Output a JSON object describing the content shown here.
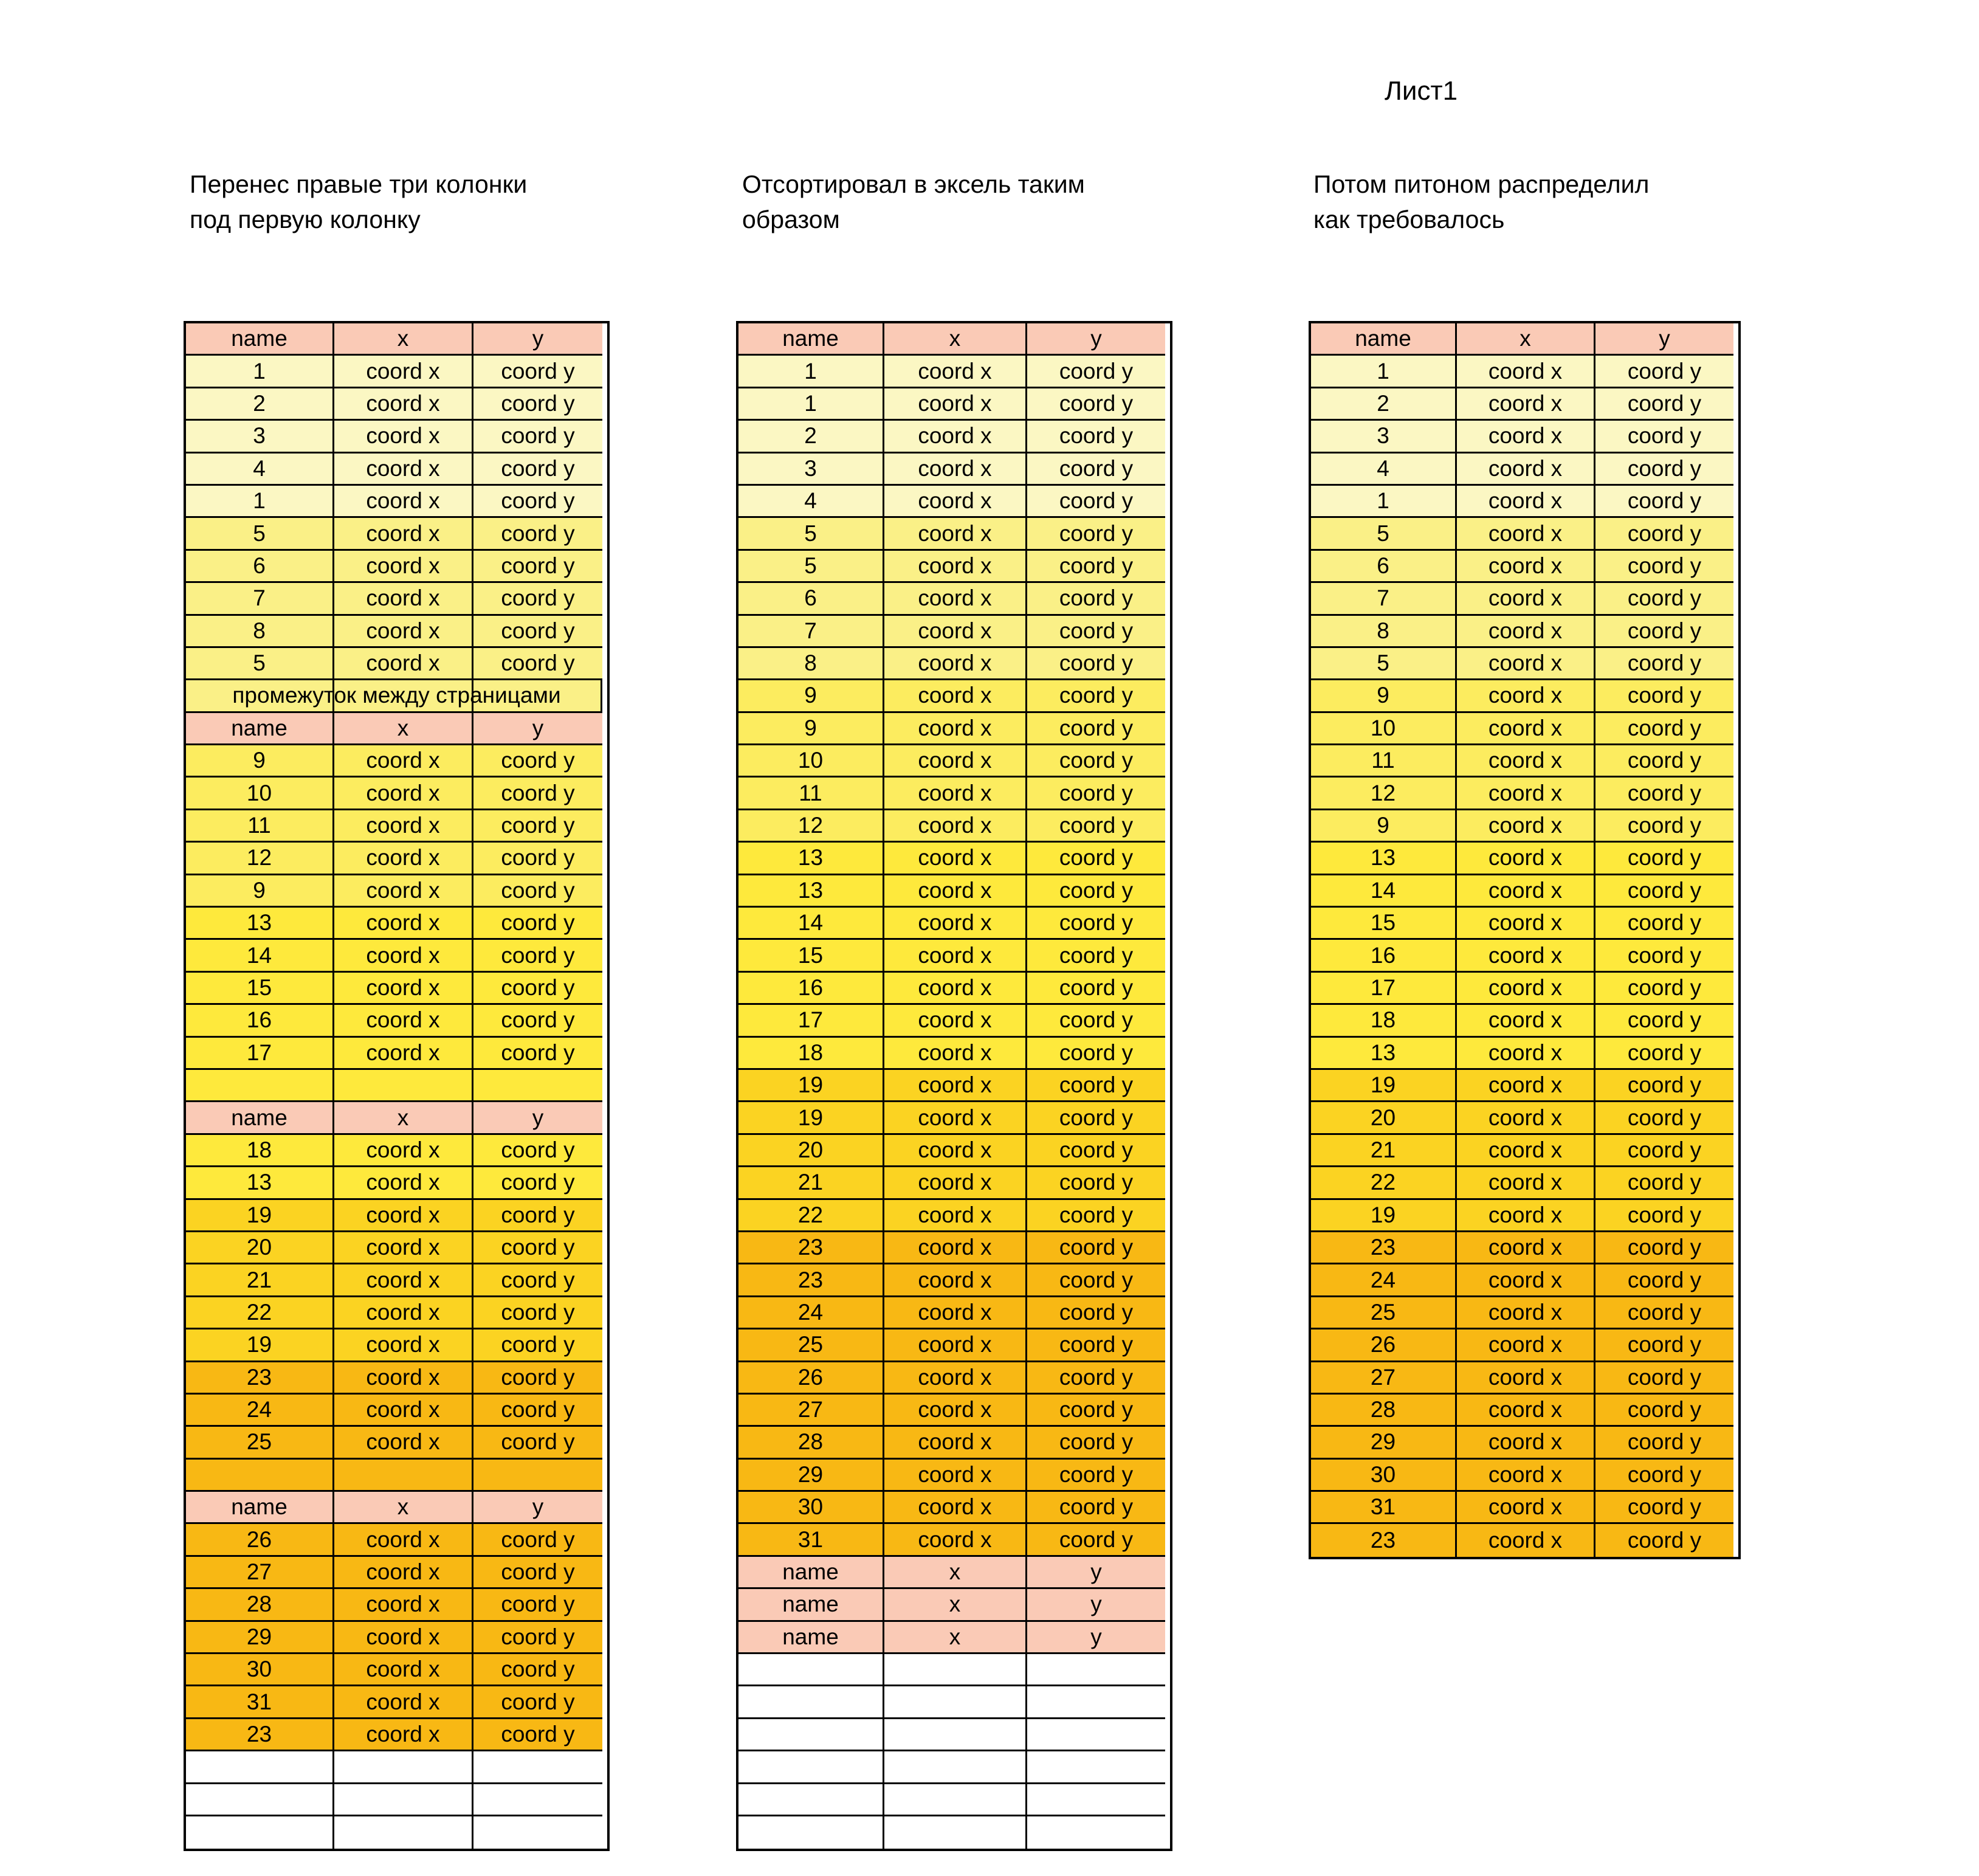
{
  "page": {
    "title": "Лист1"
  },
  "captions": {
    "c1": "Перенес правые три колонки\nпод первую колонку",
    "c2": "Отсортировал в эксель таким\nобразом",
    "c3": "Потом питоном распределил\nкак требовалось"
  },
  "table_header": {
    "name": "name",
    "x": "x",
    "y": "y"
  },
  "data_cell": {
    "x": "coord x",
    "y": "coord y"
  },
  "gap_row_label": "промежуток между страницами",
  "colors": {
    "header_pink": "#FACAB6",
    "group_1_4": "#FBF7C3",
    "group_5_8": "#FAF087",
    "group_9_12": "#FCEC5F",
    "group_13_18": "#FEE93C",
    "group_19_22": "#FBD322",
    "group_23_31": "#F8B814",
    "blank_white": "#FFFFFF",
    "border": "#000000"
  },
  "tables": [
    {
      "id": "table-1",
      "rows": [
        "header",
        1,
        2,
        3,
        4,
        1,
        5,
        6,
        7,
        8,
        5,
        "gap",
        "header",
        9,
        10,
        11,
        12,
        9,
        13,
        14,
        15,
        16,
        17,
        "empty_13_18",
        "header",
        18,
        13,
        19,
        20,
        21,
        22,
        19,
        23,
        24,
        25,
        "empty_23_31",
        "header",
        26,
        27,
        28,
        29,
        30,
        31,
        23,
        "blank",
        "blank",
        "blank"
      ]
    },
    {
      "id": "table-2",
      "rows": [
        "header",
        1,
        1,
        2,
        3,
        4,
        5,
        5,
        6,
        7,
        8,
        9,
        9,
        10,
        11,
        12,
        13,
        13,
        14,
        15,
        16,
        17,
        18,
        19,
        19,
        20,
        21,
        22,
        23,
        23,
        24,
        25,
        26,
        27,
        28,
        29,
        30,
        31,
        "pink",
        "pink",
        "pink",
        "blank",
        "blank",
        "blank",
        "blank",
        "blank",
        "blank"
      ]
    },
    {
      "id": "table-3",
      "rows": [
        "header",
        1,
        2,
        3,
        4,
        1,
        5,
        6,
        7,
        8,
        5,
        9,
        10,
        11,
        12,
        9,
        13,
        14,
        15,
        16,
        17,
        18,
        13,
        19,
        20,
        21,
        22,
        19,
        23,
        24,
        25,
        26,
        27,
        28,
        29,
        30,
        31,
        23
      ]
    }
  ]
}
